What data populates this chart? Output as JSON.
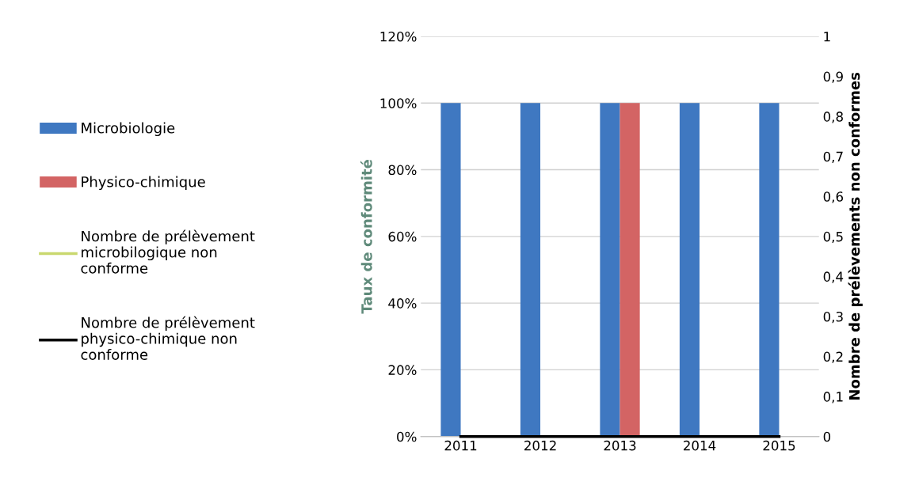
{
  "chart_data": {
    "type": "bar",
    "categories": [
      "2011",
      "2012",
      "2013",
      "2014",
      "2015"
    ],
    "ylabel": "Taux de conformité",
    "y2label": "Nombre de prélèvements non conformes",
    "series": [
      {
        "name": "Microbiologie",
        "color": "#3f78c1",
        "values": [
          100,
          100,
          100,
          100,
          100
        ]
      },
      {
        "name": "Physico-chimique",
        "color": "#d36464",
        "values": [
          null,
          null,
          100,
          null,
          null
        ]
      },
      {
        "name": "Nombre de prélèvement\nmicrobilogique non\nconforme",
        "type": "line",
        "axis": "y2",
        "color": "#c9d86e",
        "values": [
          null,
          null,
          null,
          null,
          null
        ]
      },
      {
        "name": "Nombre de prélèvement\nphysico-chimique non\nconforme",
        "type": "line",
        "axis": "y2",
        "color": "#000000",
        "values": [
          0,
          0,
          0,
          0,
          0
        ]
      }
    ],
    "ylim": [
      0,
      120
    ],
    "yticks": [
      {
        "value": 0,
        "label": "0%"
      },
      {
        "value": 20,
        "label": "20%"
      },
      {
        "value": 40,
        "label": "40%"
      },
      {
        "value": 60,
        "label": "60%"
      },
      {
        "value": 80,
        "label": "80%"
      },
      {
        "value": 100,
        "label": "100%"
      },
      {
        "value": 120,
        "label": "120%"
      }
    ],
    "y2lim": [
      0,
      1
    ],
    "y2ticks": [
      0,
      {
        "value": 0.1,
        "label": "0,1"
      },
      {
        "value": 0.2,
        "label": "0,2"
      },
      {
        "value": 0.3,
        "label": "0,3"
      },
      {
        "value": 0.4,
        "label": "0,4"
      },
      {
        "value": 0.5,
        "label": "0,5"
      },
      {
        "value": 0.6,
        "label": "0,6"
      },
      {
        "value": 0.7,
        "label": "0,7"
      },
      {
        "value": 0.8,
        "label": "0,8"
      },
      {
        "value": 0.9,
        "label": "0,9"
      },
      1
    ],
    "grid": "y",
    "legend": "left"
  }
}
